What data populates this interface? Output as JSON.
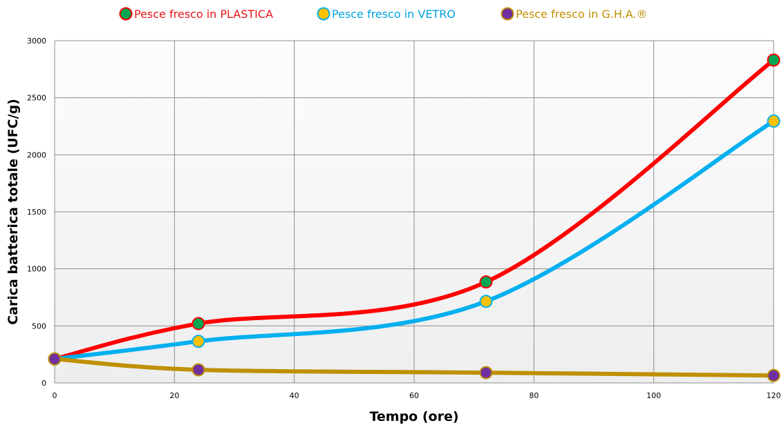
{
  "chart_data": {
    "type": "line",
    "xlabel": "Tempo (ore)",
    "ylabel": "Carica batterica totale (UFC/g)",
    "xlim": [
      0,
      120
    ],
    "ylim": [
      0,
      3000
    ],
    "xticks": [
      0,
      20,
      40,
      60,
      80,
      100,
      120
    ],
    "yticks": [
      0,
      500,
      1000,
      1500,
      2000,
      2500,
      3000
    ],
    "grid": true,
    "legend_position": "top",
    "smooth": true,
    "series": [
      {
        "name": "Pesce fresco in PLASTICA",
        "line_color": "#ff0000",
        "marker_fill": "#00a651",
        "marker_edge": "#ff0000",
        "legend_text_color": "#e8141c",
        "x": [
          0,
          24,
          72,
          120
        ],
        "y": [
          210,
          520,
          885,
          2830
        ]
      },
      {
        "name": "Pesce fresco in VETRO",
        "line_color": "#00b0f0",
        "marker_fill": "#ffc000",
        "marker_edge": "#00b0f0",
        "legend_text_color": "#00a2e0",
        "x": [
          0,
          24,
          72,
          120
        ],
        "y": [
          210,
          365,
          715,
          2295
        ]
      },
      {
        "name": "Pesce fresco in G.H.A.®",
        "line_color": "#bf9000",
        "marker_fill": "#7030a0",
        "marker_edge": "#bf9000",
        "legend_text_color": "#c09000",
        "x": [
          0,
          24,
          72,
          120
        ],
        "y": [
          210,
          115,
          90,
          65
        ]
      }
    ]
  }
}
